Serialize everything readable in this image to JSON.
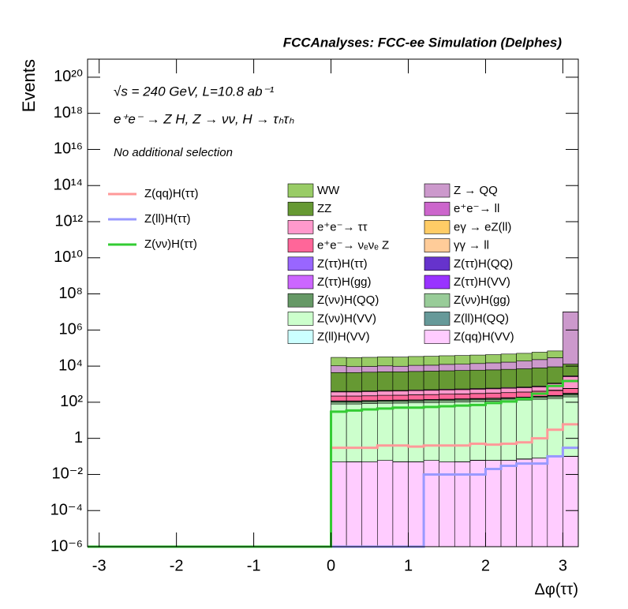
{
  "chart_data": {
    "type": "stacked_histogram",
    "title": "FCCAnalyses: FCC-ee Simulation (Delphes)",
    "energy_label": "√s = 240 GeV, L=10.8 ab⁻¹",
    "process_label": "e⁺e⁻ → Z H, Z → νν, H → τₕτₕ",
    "selection_label": "No additional selection",
    "xlabel": "Δφ(ττ)",
    "ylabel": "Events",
    "log_y": true,
    "xlim": [
      -3.15,
      3.2
    ],
    "ylim": [
      1e-06,
      1e+21
    ],
    "xticks": [
      -3,
      -2,
      -1,
      0,
      1,
      2,
      3
    ],
    "yticks": [
      {
        "value": 1e-06,
        "label": "10⁻⁶"
      },
      {
        "value": 0.0001,
        "label": "10⁻⁴"
      },
      {
        "value": 0.01,
        "label": "10⁻²"
      },
      1,
      {
        "value": 100,
        "label": "10²"
      },
      {
        "value": 10000,
        "label": "10⁴"
      },
      {
        "value": 1000000,
        "label": "10⁶"
      },
      {
        "value": 100000000.0,
        "label": "10⁸"
      },
      {
        "value": 10000000000.0,
        "label": "10¹⁰"
      },
      {
        "value": 1000000000000.0,
        "label": "10¹²"
      },
      {
        "value": 100000000000000.0,
        "label": "10¹⁴"
      },
      {
        "value": 1e+16,
        "label": "10¹⁶"
      },
      {
        "value": 1e+18,
        "label": "10¹⁸"
      },
      {
        "value": 1e+20,
        "label": "10²⁰"
      }
    ],
    "bins": [
      0,
      0.2,
      0.4,
      0.6,
      0.8,
      1.0,
      1.2,
      1.4,
      1.6,
      1.8,
      2.0,
      2.2,
      2.4,
      2.6,
      2.8,
      3.0,
      3.2
    ],
    "series": [
      {
        "name": "WW",
        "color": "#99cc66",
        "histtype": "stepfilled",
        "values": [
          20000,
          20000,
          21000,
          22000,
          22000,
          23000,
          24000,
          25000,
          26000,
          27000,
          28000,
          30000,
          32000,
          36000,
          40000,
          50000
        ]
      },
      {
        "name": "Z → QQ",
        "color": "#cc99cc",
        "histtype": "stepfilled",
        "values": [
          6000,
          5000,
          5000,
          5500,
          5000,
          6000,
          6000,
          7000,
          7000,
          8000,
          9000,
          10000,
          12000,
          15000,
          20000,
          10000000
        ]
      },
      {
        "name": "ZZ",
        "color": "#669933",
        "histtype": "stepfilled",
        "values": [
          4000,
          4000,
          4200,
          4400,
          4400,
          4600,
          4800,
          5000,
          5200,
          5400,
          5600,
          6000,
          6400,
          7200,
          8000,
          10000
        ]
      },
      {
        "name": "e⁺e⁻→ ll",
        "color": "#cc66cc",
        "histtype": "stepfilled",
        "values": [
          30,
          30,
          30,
          35,
          35,
          40,
          40,
          45,
          45,
          50,
          50,
          60,
          60,
          70,
          80,
          300
        ]
      },
      {
        "name": "e⁺e⁻→ ττ",
        "color": "#ff99cc",
        "histtype": "stepfilled",
        "values": [
          150,
          150,
          160,
          170,
          170,
          180,
          190,
          200,
          210,
          220,
          230,
          250,
          270,
          300,
          600,
          2000
        ]
      },
      {
        "name": "eγ → eZ(ll)",
        "color": "#ffcc66",
        "histtype": "stepfilled",
        "values": [
          3,
          3,
          3,
          3,
          3,
          4,
          4,
          4,
          4,
          5,
          5,
          5,
          6,
          6,
          30,
          20
        ]
      },
      {
        "name": "e⁺e⁻→ νₑνₑ Z",
        "color": "#ff6699",
        "histtype": "stepfilled",
        "values": [
          100,
          100,
          100,
          110,
          110,
          120,
          120,
          130,
          130,
          140,
          150,
          160,
          170,
          190,
          200,
          250
        ]
      },
      {
        "name": "γγ → ll",
        "color": "#ffcc99",
        "histtype": "stepfilled",
        "values": [
          2,
          2,
          2,
          2,
          2,
          2,
          3,
          3,
          3,
          3,
          3,
          4,
          4,
          5,
          5,
          20
        ]
      },
      {
        "name": "Z(ττ)H(ττ)",
        "color": "#9966ff",
        "histtype": "stepfilled",
        "values": [
          0.5,
          0.5,
          0.5,
          0.5,
          0.6,
          0.6,
          0.6,
          0.7,
          0.7,
          0.8,
          0.8,
          0.9,
          1,
          1,
          1.2,
          1.5
        ]
      },
      {
        "name": "Z(ττ)H(QQ)",
        "color": "#6633cc",
        "histtype": "stepfilled",
        "values": [
          0.3,
          0.2,
          0.3,
          0.3,
          0.2,
          0.4,
          0.3,
          0.3,
          0.4,
          0.5,
          0.4,
          0.5,
          0.6,
          0.8,
          1,
          1.5
        ]
      },
      {
        "name": "Z(ττ)H(gg)",
        "color": "#cc66ff",
        "histtype": "stepfilled",
        "values": [
          0.2,
          0.2,
          0.3,
          0.2,
          0.3,
          0.3,
          0.2,
          0.3,
          0.3,
          0.4,
          0.3,
          0.4,
          0.5,
          0.5,
          0.6,
          0.8
        ]
      },
      {
        "name": "Z(ττ)H(VV)",
        "color": "#9933ff",
        "histtype": "stepfilled",
        "values": [
          0.5,
          0.6,
          0.6,
          0.6,
          0.7,
          0.7,
          0.8,
          0.8,
          0.9,
          0.9,
          1,
          1.1,
          1.2,
          1.4,
          1.6,
          2
        ]
      },
      {
        "name": "Z(νν)H(QQ)",
        "color": "#669966",
        "histtype": "stepfilled",
        "values": [
          15,
          15,
          16,
          16,
          17,
          17,
          18,
          18,
          19,
          20,
          21,
          22,
          24,
          26,
          30,
          40
        ]
      },
      {
        "name": "Z(νν)H(gg)",
        "color": "#99cc99",
        "histtype": "stepfilled",
        "values": [
          20,
          20,
          21,
          22,
          22,
          23,
          24,
          25,
          26,
          27,
          28,
          30,
          32,
          36,
          40,
          50
        ]
      },
      {
        "name": "Z(νν)H(VV)",
        "color": "#ccffcc",
        "histtype": "stepfilled",
        "values": [
          80,
          80,
          85,
          88,
          90,
          92,
          96,
          100,
          105,
          110,
          115,
          120,
          130,
          145,
          160,
          200
        ]
      },
      {
        "name": "Z(ll)H(QQ)",
        "color": "#669999",
        "histtype": "stepfilled",
        "values": [
          0,
          0,
          0,
          0,
          0,
          0,
          0,
          0,
          0,
          0,
          0,
          0,
          0,
          0.0001,
          0.0002,
          0.001
        ]
      },
      {
        "name": "Z(ll)H(VV)",
        "color": "#ccffff",
        "histtype": "stepfilled",
        "values": [
          0,
          0.001,
          0,
          0,
          0.001,
          0.001,
          0,
          0,
          0.001,
          0.002,
          0.001,
          0.001,
          0.003,
          0.001,
          0.003,
          0.002
        ]
      },
      {
        "name": "Z(qq)H(VV)",
        "color": "#ffccff",
        "histtype": "stepfilled",
        "values": [
          0.05,
          0.05,
          0.05,
          0.06,
          0.05,
          0.05,
          0.06,
          0.05,
          0.05,
          0.06,
          0.06,
          0.06,
          0.07,
          0.08,
          0.1,
          0.1
        ]
      },
      {
        "name": "Z(qq)H(ττ)",
        "color": "#ff9999",
        "histtype": "step",
        "values": [
          0.3,
          0.3,
          0.3,
          0.4,
          0.4,
          0.35,
          0.4,
          0.4,
          0.4,
          0.5,
          0.45,
          0.5,
          0.6,
          1,
          3,
          6
        ]
      },
      {
        "name": "Z(ll)H(ττ)",
        "color": "#9999ff",
        "histtype": "step",
        "values": [
          0,
          0,
          0,
          0,
          0,
          0,
          0.01,
          0.01,
          0.01,
          0.01,
          0.02,
          0.03,
          0.04,
          0.04,
          0.1,
          0.3
        ]
      },
      {
        "name": "Z(νν)H(ττ)",
        "color": "#33cc33",
        "histtype": "step",
        "values": [
          30,
          35,
          40,
          45,
          50,
          50,
          55,
          60,
          65,
          70,
          90,
          110,
          150,
          300,
          800,
          1500
        ]
      }
    ]
  }
}
